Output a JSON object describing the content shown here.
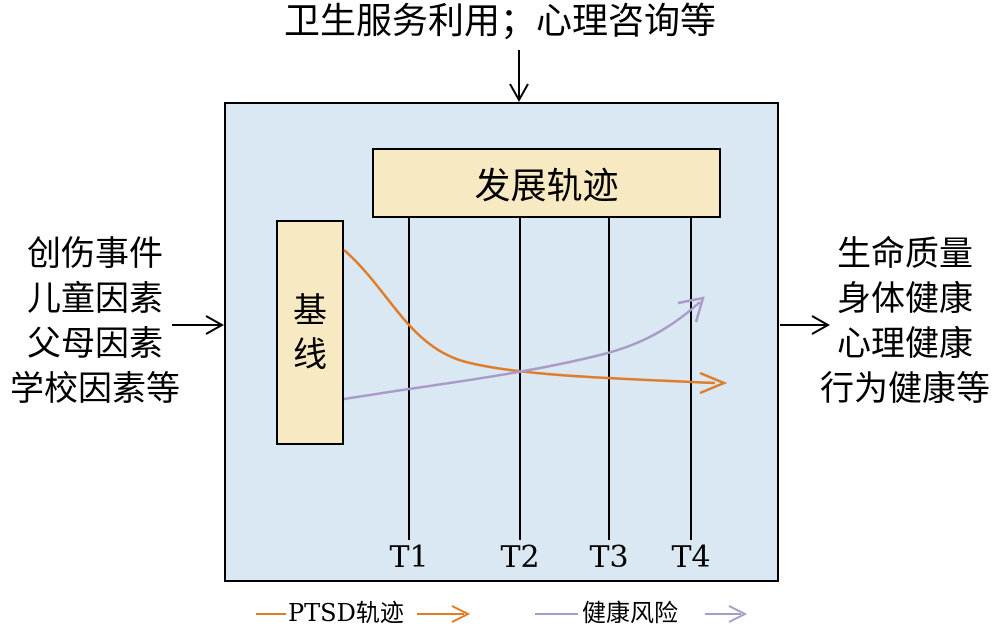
{
  "top_label": "卫生服务利用；心理咨询等",
  "left_inputs": [
    "创伤事件",
    "儿童因素",
    "父母因素",
    "学校因素等"
  ],
  "right_outputs": [
    "生命质量",
    "身体健康",
    "心理健康",
    "行为健康等"
  ],
  "trajectory_box_label": "发展轨迹",
  "baseline_label": "基线",
  "time_points": [
    "T1",
    "T2",
    "T3",
    "T4"
  ],
  "legend": {
    "ptsd": "PTSD轨迹",
    "health_risk": "健康风险"
  },
  "colors": {
    "ptsd": "#e07b27",
    "health_risk": "#a99bc7",
    "panel": "#d9e8f2",
    "box": "#f7e9c2"
  }
}
